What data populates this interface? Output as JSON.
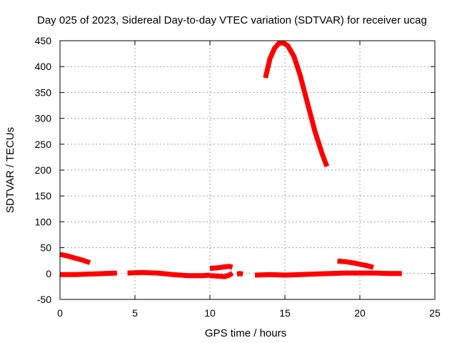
{
  "chart_data": {
    "type": "line",
    "title": "Day 025 of 2023, Sidereal Day-to-day VTEC variation (SDTVAR) for receiver ucag",
    "xlabel": "GPS time / hours",
    "ylabel": "SDTVAR / TECUs",
    "xlim": [
      0,
      25
    ],
    "ylim": [
      -50,
      450
    ],
    "xticks": [
      0,
      5,
      10,
      15,
      20,
      25
    ],
    "yticks": [
      -50,
      0,
      50,
      100,
      150,
      200,
      250,
      300,
      350,
      400,
      450
    ],
    "grid": true,
    "legend": "none",
    "series_color": "#ff0000",
    "series": [
      {
        "x": [
          0.0,
          0.5,
          1.0,
          1.5,
          2.0
        ],
        "y": [
          37,
          34,
          30,
          26,
          21
        ]
      },
      {
        "x": [
          0.0,
          1.0,
          2.0,
          3.0,
          3.8
        ],
        "y": [
          -2,
          -2,
          -1,
          0,
          1
        ]
      },
      {
        "x": [
          4.5,
          5.5,
          6.5,
          7.5,
          8.5,
          9.5,
          10.0
        ],
        "y": [
          1,
          2,
          1,
          -2,
          -4,
          -4,
          -3
        ]
      },
      {
        "x": [
          10.0,
          10.5,
          11.0,
          11.3,
          11.5
        ],
        "y": [
          10,
          11,
          13,
          14,
          12
        ]
      },
      {
        "x": [
          10.0,
          10.5,
          11.0,
          11.3,
          11.5
        ],
        "y": [
          -4,
          -5,
          -6,
          -3,
          1
        ]
      },
      {
        "x": [
          11.8,
          12.0,
          12.2
        ],
        "y": [
          -1,
          0,
          -1
        ]
      },
      {
        "x": [
          13.0,
          14.0,
          15.0,
          16.0,
          17.0,
          18.0
        ],
        "y": [
          -3,
          -2,
          -3,
          -2,
          -1,
          0
        ]
      },
      {
        "x": [
          13.7,
          14.0,
          14.3,
          14.6,
          14.9,
          15.2,
          15.6,
          16.0,
          16.5,
          17.0,
          17.5,
          17.8
        ],
        "y": [
          378,
          415,
          435,
          445,
          446,
          440,
          420,
          385,
          330,
          275,
          230,
          207
        ]
      },
      {
        "x": [
          18.0,
          19.0,
          20.0,
          21.0,
          22.0,
          22.8
        ],
        "y": [
          0,
          1,
          1,
          1,
          0,
          0
        ]
      },
      {
        "x": [
          18.5,
          19.0,
          19.5,
          20.0,
          20.5,
          20.9
        ],
        "y": [
          24,
          23,
          21,
          18,
          15,
          12
        ]
      }
    ]
  }
}
